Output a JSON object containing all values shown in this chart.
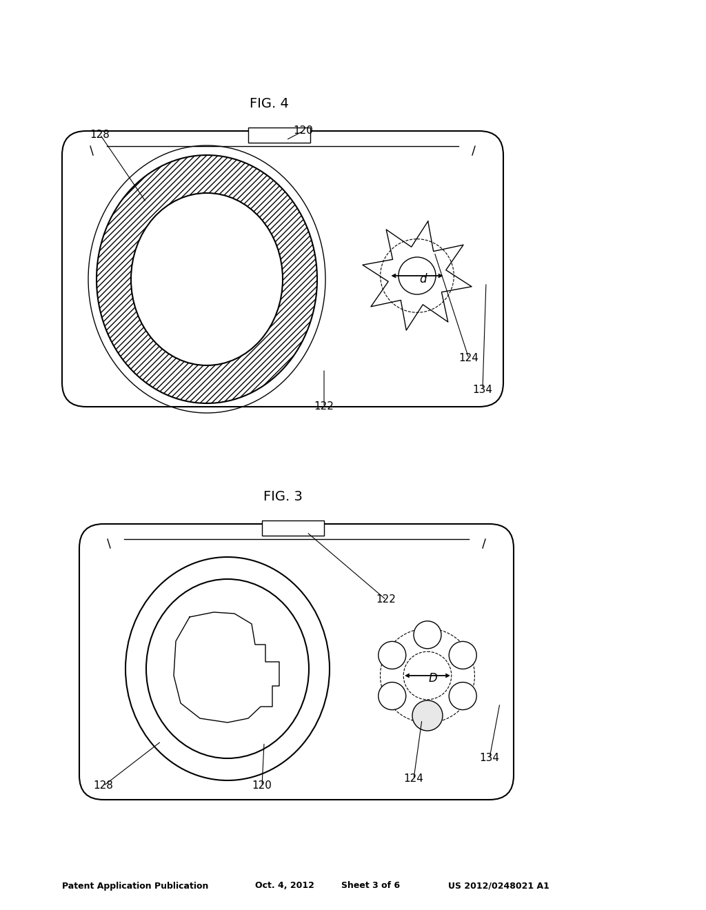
{
  "bg_color": "#ffffff",
  "lc": "#000000",
  "header_text": "Patent Application Publication",
  "header_date": "Oct. 4, 2012",
  "header_sheet": "Sheet 3 of 6",
  "header_patent": "US 2012/0248021 A1",
  "fig3_label": "FIG. 3",
  "fig4_label": "FIG. 4"
}
